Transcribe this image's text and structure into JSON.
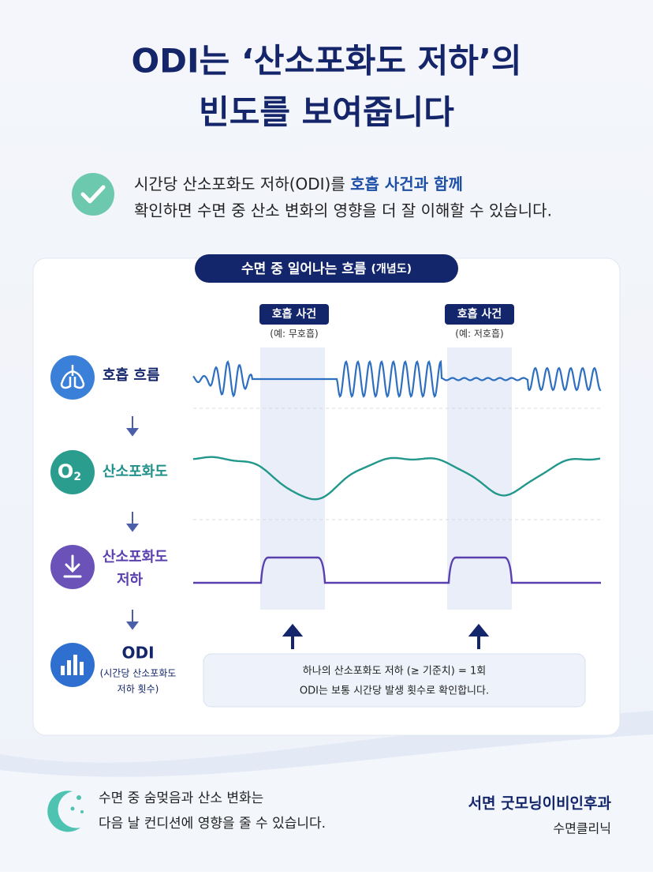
{
  "header": {
    "title_lines": [
      "ODI는 ‘산소포화도 저하’의",
      "빈도를 보여줍니다"
    ]
  },
  "intro": {
    "line1": "시간당 산소포화도 저하(ODI)를 ",
    "highlight": "호흡 사건과 함께",
    "line2": "확인하면 수면 중 산소 변화의 영향을 더 잘 이해할 수 있습니다."
  },
  "diagram": {
    "title": "수면 중 일어나는 흐름",
    "title_note": "(개념도)",
    "events": [
      {
        "label": "호흡 사건",
        "note": "(예: 무호흡)"
      },
      {
        "label": "호흡 사건",
        "note": "(예: 저호흡)"
      }
    ],
    "rows": [
      {
        "label_lines": [
          "호흡 흐름"
        ]
      },
      {
        "icon_text": [
          "O",
          "2"
        ],
        "label_lines": [
          "산소포화도"
        ]
      },
      {
        "label_lines": [
          "산소포화도",
          "저하"
        ]
      },
      {
        "label_lines": [
          "ODI"
        ],
        "sublabel_lines": [
          "(시간당 산소포화도",
          "저하 횟수)"
        ]
      }
    ],
    "note_lines": [
      "하나의 산소포화도 저하 (≥ 기준치) = 1회",
      "ODI는 보통 시간당 발생 횟수로 확인합니다."
    ]
  },
  "footer": {
    "message_lines": [
      "수면 중 숨멎음과 산소 변화는",
      "다음 날 컨디션에 영향을 줄 수 있습니다."
    ],
    "clinic": "서면 굿모닝이비인후과",
    "clinic_sub": "수면클리닉"
  }
}
